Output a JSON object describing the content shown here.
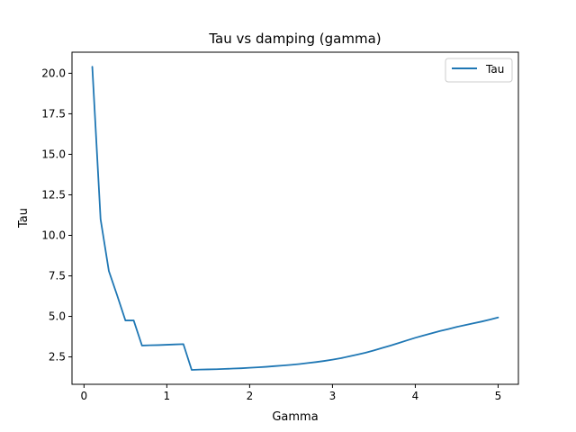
{
  "chart_data": {
    "type": "line",
    "title": "Tau vs damping (gamma)",
    "xlabel": "Gamma",
    "ylabel": "Tau",
    "xlim": [
      -0.145,
      5.245
    ],
    "ylim": [
      0.81,
      21.3
    ],
    "xticks": [
      0,
      1,
      2,
      3,
      4,
      5
    ],
    "xtick_labels": [
      "0",
      "1",
      "2",
      "3",
      "4",
      "5"
    ],
    "yticks": [
      2.5,
      5.0,
      7.5,
      10.0,
      12.5,
      15.0,
      17.5,
      20.0
    ],
    "ytick_labels": [
      "2.5",
      "5.0",
      "7.5",
      "10.0",
      "12.5",
      "15.0",
      "17.5",
      "20.0"
    ],
    "grid": false,
    "legend_position": "top-right",
    "series": [
      {
        "name": "Tau",
        "color": "#1f77b4",
        "x": [
          0.1,
          0.2,
          0.3,
          0.4,
          0.5,
          0.6,
          0.7,
          0.8,
          0.9,
          1.0,
          1.1,
          1.2,
          1.3,
          1.4,
          1.5,
          1.6,
          1.7,
          1.8,
          1.9,
          2.0,
          2.1,
          2.2,
          2.3,
          2.4,
          2.5,
          2.6,
          2.7,
          2.8,
          2.9,
          3.0,
          3.1,
          3.2,
          3.3,
          3.4,
          3.5,
          3.6,
          3.7,
          3.8,
          3.9,
          4.0,
          4.1,
          4.2,
          4.3,
          4.4,
          4.5,
          4.6,
          4.7,
          4.8,
          4.9,
          5.0
        ],
        "y": [
          20.4,
          11.0,
          7.8,
          6.3,
          4.75,
          4.75,
          3.2,
          3.22,
          3.23,
          3.25,
          3.27,
          3.29,
          1.7,
          1.72,
          1.73,
          1.74,
          1.76,
          1.78,
          1.8,
          1.83,
          1.86,
          1.89,
          1.93,
          1.97,
          2.01,
          2.06,
          2.12,
          2.18,
          2.25,
          2.33,
          2.42,
          2.53,
          2.64,
          2.76,
          2.9,
          3.05,
          3.2,
          3.36,
          3.52,
          3.68,
          3.82,
          3.96,
          4.1,
          4.22,
          4.35,
          4.46,
          4.57,
          4.68,
          4.8,
          4.93
        ]
      }
    ]
  }
}
